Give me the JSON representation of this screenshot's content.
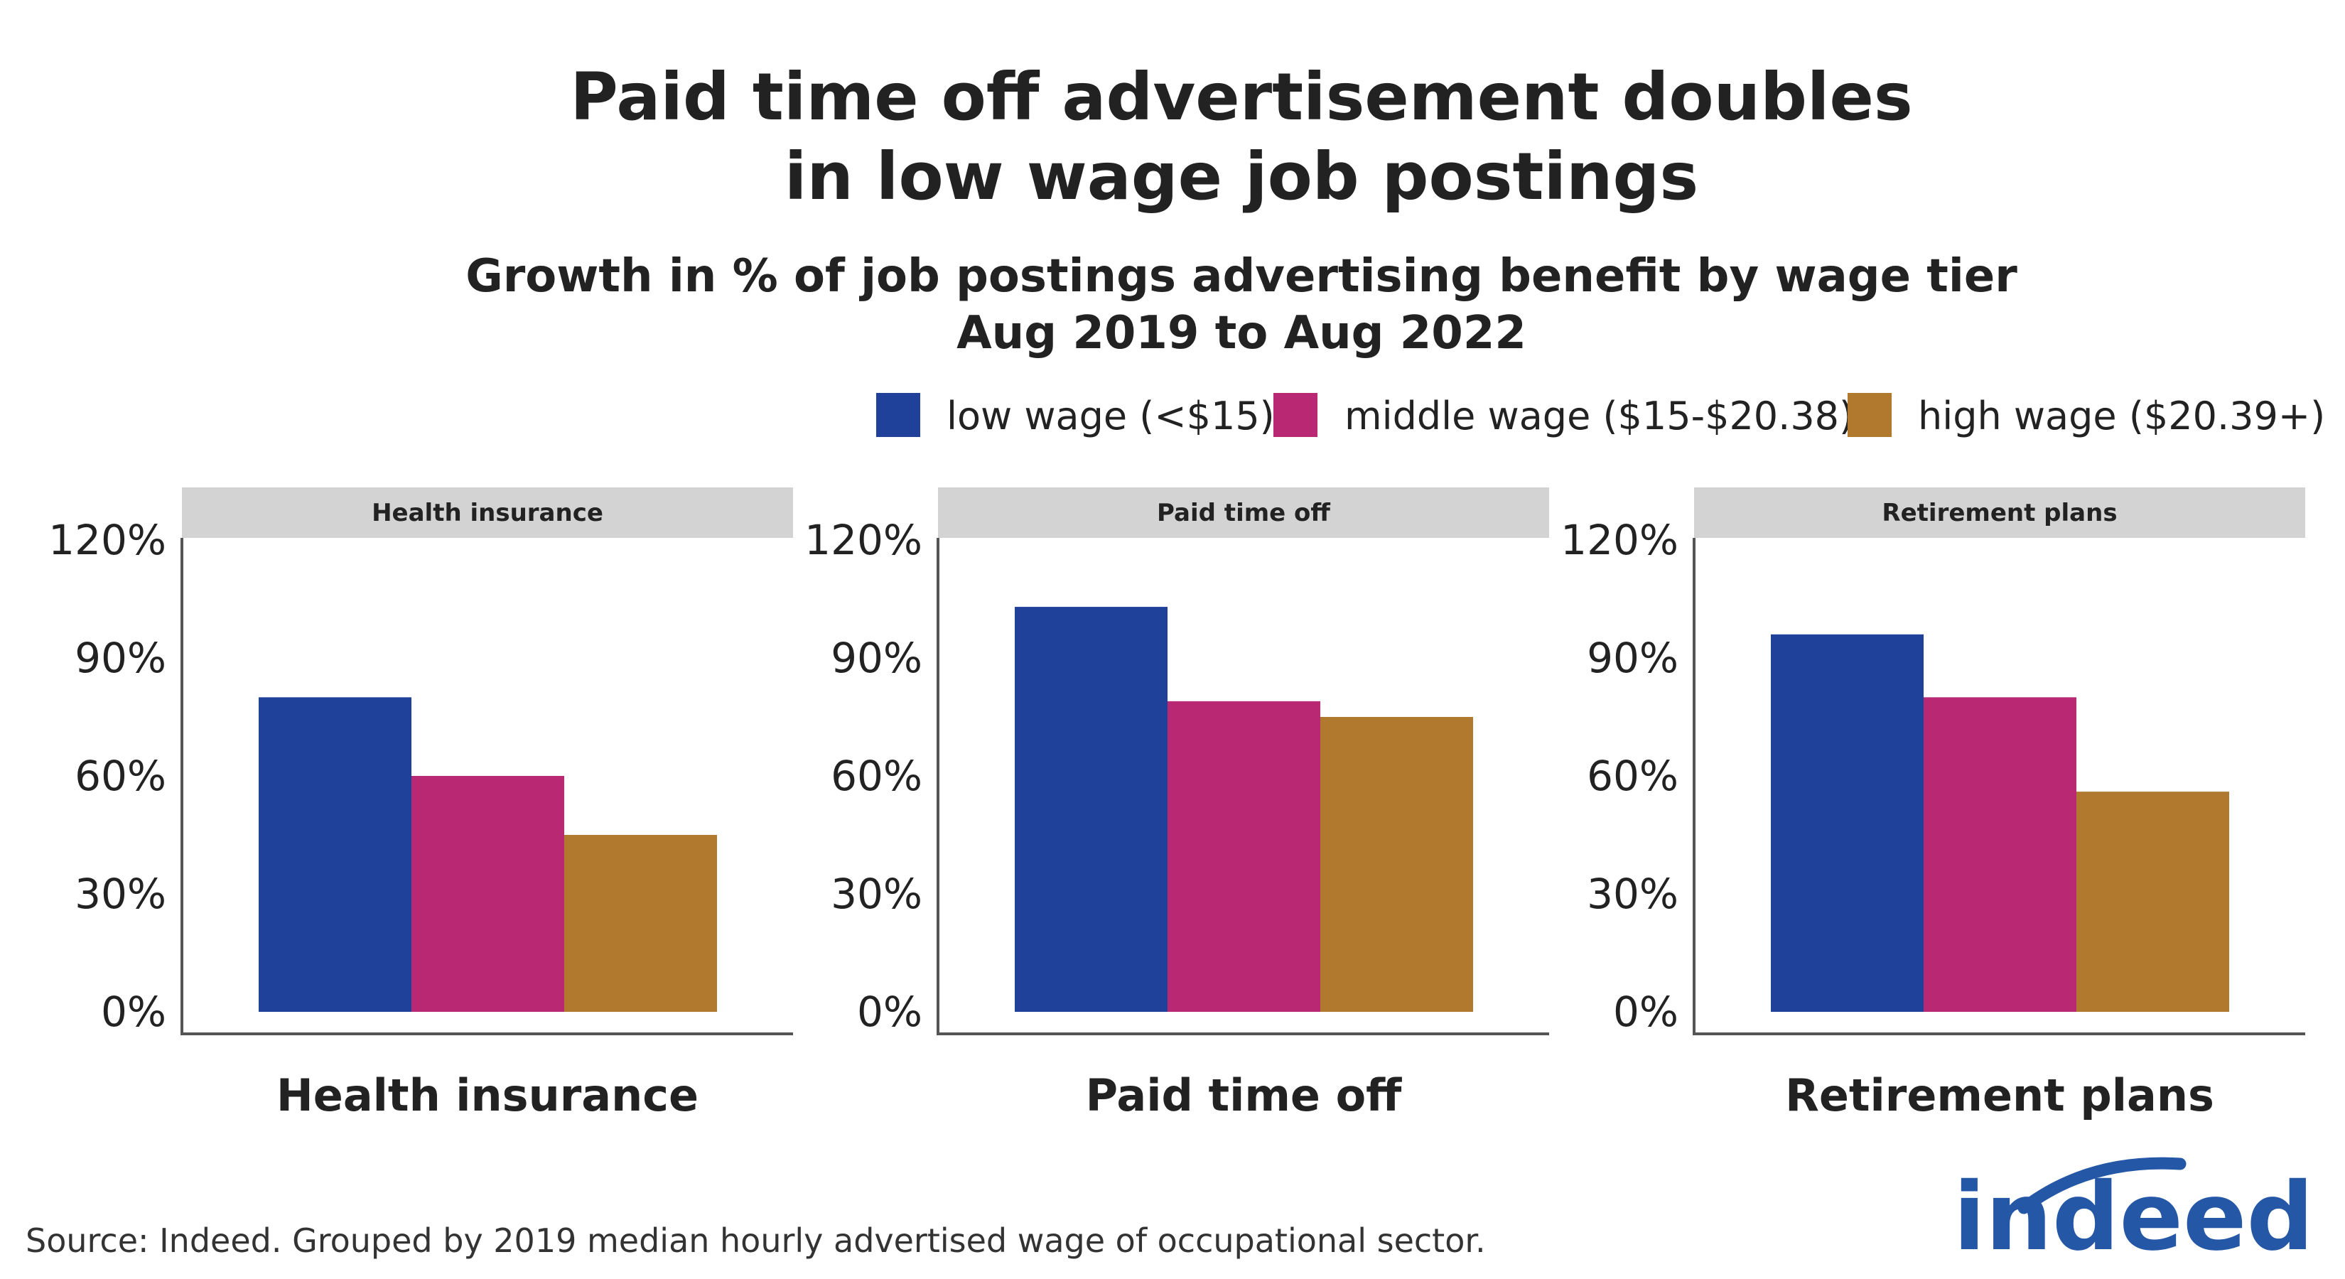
{
  "title_lines": [
    "Paid time off advertisement doubles",
    "in low wage job postings"
  ],
  "subtitle_lines": [
    "Growth in % of job postings advertising benefit by wage tier",
    "Aug 2019 to Aug 2022"
  ],
  "source": "Source: Indeed. Grouped by 2019 median hourly advertised wage of occupational sector.",
  "logo_text": "indeed",
  "colors": {
    "low": "#20419a",
    "middle": "#b82873",
    "high": "#b0792e",
    "strip": "#d3d3d3",
    "axis": "#555555",
    "text": "#222222",
    "logo": "#2557a7"
  },
  "chart_data": {
    "type": "bar",
    "title": "Paid time off advertisement doubles in low wage job postings",
    "subtitle": "Growth in % of job postings advertising benefit by wage tier, Aug 2019 to Aug 2022",
    "xlabel": "",
    "ylabel": "",
    "ylim": [
      0,
      120
    ],
    "yticks": [
      0,
      30,
      60,
      90,
      120
    ],
    "ytick_labels": [
      "0%",
      "30%",
      "60%",
      "90%",
      "120%"
    ],
    "grid": false,
    "legend_position": "top-right",
    "legend": [
      "low wage (<$15)",
      "middle wage ($15-$20.38)",
      "high wage ($20.39+)"
    ],
    "series_colors": [
      "#20419a",
      "#b82873",
      "#b0792e"
    ],
    "panels": [
      {
        "strip_label": "Health insurance",
        "x_label": "Health insurance",
        "values": [
          80,
          60,
          45
        ]
      },
      {
        "strip_label": "Paid time off",
        "x_label": "Paid time off",
        "values": [
          103,
          79,
          75
        ]
      },
      {
        "strip_label": "Retirement plans",
        "x_label": "Retirement plans",
        "values": [
          96,
          80,
          56
        ]
      }
    ]
  }
}
